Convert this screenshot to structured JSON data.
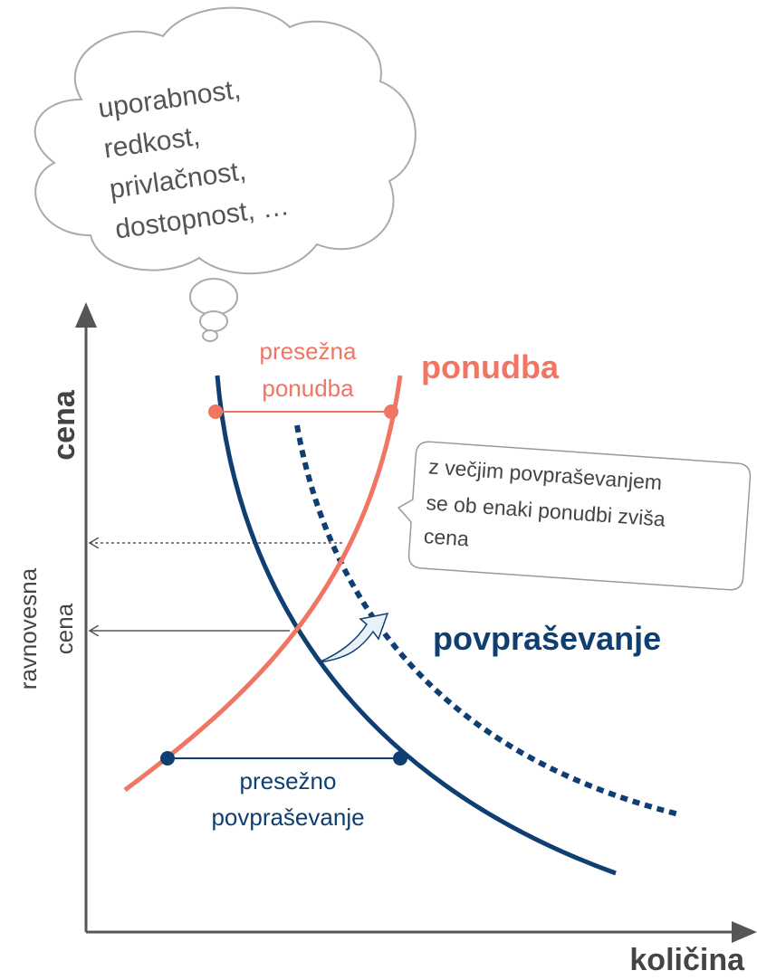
{
  "cloud": {
    "lines": [
      "uporabnost,",
      "redkost,",
      "privlačnost,",
      "dostopnost, …"
    ]
  },
  "axes": {
    "y_label": "cena",
    "x_label": "količina"
  },
  "equilibrium_label": [
    "ravnovesna",
    "cena"
  ],
  "excess_supply": [
    "presežna",
    "ponudba"
  ],
  "supply_label": "ponudba",
  "demand_label": "povpraševanje",
  "excess_demand": [
    "presežno",
    "povpraševanje"
  ],
  "callout": {
    "lines": [
      "z večjim povpraševanjem",
      "se ob enaki ponudbi zviša",
      "cena"
    ]
  }
}
